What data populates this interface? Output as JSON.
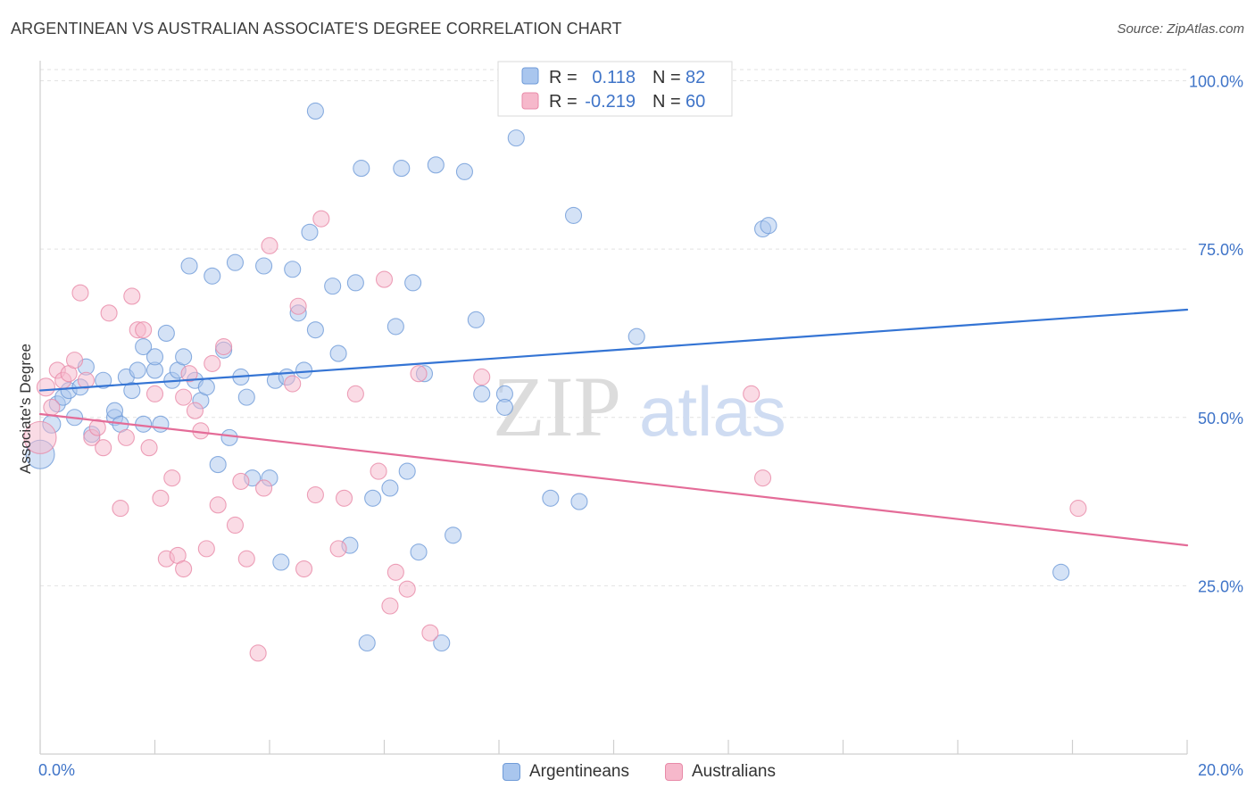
{
  "header": {
    "title": "ARGENTINEAN VS AUSTRALIAN ASSOCIATE'S DEGREE CORRELATION CHART",
    "source": "Source: ZipAtlas.com"
  },
  "watermark": {
    "zip": "ZIP",
    "atlas": "atlas"
  },
  "colors": {
    "blue_fill": "#a9c6ee",
    "blue_stroke": "#6f9bd8",
    "blue_line": "#3474d4",
    "pink_fill": "#f6b8cb",
    "pink_stroke": "#e88aa8",
    "pink_line": "#e46c98",
    "tick_label": "#3f74c8",
    "grid": "#e2e2e2"
  },
  "stats_legend": {
    "rows": [
      {
        "r_label": "R =",
        "r_value": "0.118",
        "n_label": "N =",
        "n_value": "82"
      },
      {
        "r_label": "R =",
        "r_value": "-0.219",
        "n_label": "N =",
        "n_value": "60"
      }
    ]
  },
  "bottom_legend": {
    "items": [
      {
        "label": "Argentineans"
      },
      {
        "label": "Australians"
      }
    ]
  },
  "chart_data": {
    "type": "scatter",
    "title": "ARGENTINEAN VS AUSTRALIAN ASSOCIATE'S DEGREE CORRELATION CHART",
    "xlabel": "",
    "ylabel": "Associate's Degree",
    "xlim": [
      0,
      20
    ],
    "ylim": [
      0,
      100
    ],
    "x_tick_labels": [
      {
        "value": 0,
        "label": "0.0%"
      },
      {
        "value": 20,
        "label": "20.0%"
      }
    ],
    "y_tick_labels": [
      {
        "value": 25,
        "label": "25.0%"
      },
      {
        "value": 50,
        "label": "50.0%"
      },
      {
        "value": 75,
        "label": "75.0%"
      },
      {
        "value": 100,
        "label": "100.0%"
      }
    ],
    "grid": true,
    "legend_position": "top-center",
    "series": [
      {
        "name": "Argentineans",
        "r": 0.118,
        "n": 82,
        "trend": {
          "x": [
            0,
            20
          ],
          "y": [
            54.0,
            66.0
          ]
        },
        "points": [
          [
            0.0,
            44.5,
            16
          ],
          [
            0.2,
            49.0,
            10
          ],
          [
            0.3,
            52.0,
            9
          ],
          [
            0.4,
            53.0,
            9
          ],
          [
            0.5,
            54.0,
            9
          ],
          [
            0.6,
            50.0,
            9
          ],
          [
            0.7,
            54.5,
            9
          ],
          [
            0.8,
            57.5,
            9
          ],
          [
            0.9,
            47.5,
            9
          ],
          [
            1.1,
            55.5,
            9
          ],
          [
            1.3,
            50.0,
            9
          ],
          [
            1.3,
            51.0,
            9
          ],
          [
            1.4,
            49.0,
            9
          ],
          [
            1.5,
            56.0,
            9
          ],
          [
            1.6,
            54.0,
            9
          ],
          [
            1.7,
            57.0,
            9
          ],
          [
            1.8,
            49.0,
            9
          ],
          [
            1.8,
            60.5,
            9
          ],
          [
            2.0,
            57.0,
            9
          ],
          [
            2.0,
            59.0,
            9
          ],
          [
            2.1,
            49.0,
            9
          ],
          [
            2.2,
            62.5,
            9
          ],
          [
            2.3,
            55.5,
            9
          ],
          [
            2.4,
            57.0,
            9
          ],
          [
            2.5,
            59.0,
            9
          ],
          [
            2.6,
            72.5,
            9
          ],
          [
            2.7,
            55.5,
            9
          ],
          [
            2.8,
            52.5,
            9
          ],
          [
            2.9,
            54.5,
            9
          ],
          [
            3.0,
            71.0,
            9
          ],
          [
            3.1,
            43.0,
            9
          ],
          [
            3.2,
            60.0,
            9
          ],
          [
            3.3,
            47.0,
            9
          ],
          [
            3.4,
            73.0,
            9
          ],
          [
            3.5,
            56.0,
            9
          ],
          [
            3.6,
            53.0,
            9
          ],
          [
            3.7,
            41.0,
            9
          ],
          [
            3.9,
            72.5,
            9
          ],
          [
            4.0,
            41.0,
            9
          ],
          [
            4.1,
            55.5,
            9
          ],
          [
            4.2,
            28.5,
            9
          ],
          [
            4.3,
            56.0,
            9
          ],
          [
            4.4,
            72.0,
            9
          ],
          [
            4.5,
            65.5,
            9
          ],
          [
            4.6,
            57.0,
            9
          ],
          [
            4.7,
            77.5,
            9
          ],
          [
            4.8,
            63.0,
            9
          ],
          [
            4.8,
            95.5,
            9
          ],
          [
            5.1,
            69.5,
            9
          ],
          [
            5.2,
            59.5,
            9
          ],
          [
            5.4,
            31.0,
            9
          ],
          [
            5.5,
            70.0,
            9
          ],
          [
            5.6,
            87.0,
            9
          ],
          [
            5.7,
            16.5,
            9
          ],
          [
            5.8,
            38.0,
            9
          ],
          [
            6.1,
            39.5,
            9
          ],
          [
            6.2,
            63.5,
            9
          ],
          [
            6.3,
            87.0,
            9
          ],
          [
            6.4,
            42.0,
            9
          ],
          [
            6.5,
            70.0,
            9
          ],
          [
            6.6,
            30.0,
            9
          ],
          [
            6.7,
            56.5,
            9
          ],
          [
            6.9,
            87.5,
            9
          ],
          [
            7.0,
            16.5,
            9
          ],
          [
            7.2,
            32.5,
            9
          ],
          [
            7.4,
            86.5,
            9
          ],
          [
            7.6,
            64.5,
            9
          ],
          [
            7.7,
            53.5,
            9
          ],
          [
            8.1,
            53.5,
            9
          ],
          [
            8.1,
            51.5,
            9
          ],
          [
            8.3,
            91.5,
            9
          ],
          [
            8.9,
            38.0,
            9
          ],
          [
            9.1,
            100.0,
            9
          ],
          [
            9.3,
            80.0,
            9
          ],
          [
            9.4,
            37.5,
            9
          ],
          [
            10.4,
            62.0,
            9
          ],
          [
            12.6,
            78.0,
            9
          ],
          [
            12.7,
            78.5,
            9
          ],
          [
            17.8,
            27.0,
            9
          ]
        ]
      },
      {
        "name": "Australians",
        "r": -0.219,
        "n": 60,
        "trend": {
          "x": [
            0,
            20
          ],
          "y": [
            50.5,
            31.0
          ]
        },
        "points": [
          [
            0.0,
            47.0,
            18
          ],
          [
            0.1,
            54.5,
            10
          ],
          [
            0.2,
            51.5,
            9
          ],
          [
            0.3,
            57.0,
            9
          ],
          [
            0.4,
            55.5,
            9
          ],
          [
            0.5,
            56.5,
            9
          ],
          [
            0.6,
            58.5,
            9
          ],
          [
            0.7,
            68.5,
            9
          ],
          [
            0.8,
            55.5,
            9
          ],
          [
            0.9,
            47.0,
            9
          ],
          [
            1.0,
            48.5,
            9
          ],
          [
            1.1,
            45.5,
            9
          ],
          [
            1.2,
            65.5,
            9
          ],
          [
            1.4,
            36.5,
            9
          ],
          [
            1.5,
            47.0,
            9
          ],
          [
            1.6,
            68.0,
            9
          ],
          [
            1.7,
            63.0,
            9
          ],
          [
            1.8,
            63.0,
            9
          ],
          [
            1.9,
            45.5,
            9
          ],
          [
            2.0,
            53.5,
            9
          ],
          [
            2.1,
            38.0,
            9
          ],
          [
            2.2,
            29.0,
            9
          ],
          [
            2.3,
            41.0,
            9
          ],
          [
            2.4,
            29.5,
            9
          ],
          [
            2.5,
            53.0,
            9
          ],
          [
            2.5,
            27.5,
            9
          ],
          [
            2.6,
            56.5,
            9
          ],
          [
            2.7,
            51.0,
            9
          ],
          [
            2.8,
            48.0,
            9
          ],
          [
            2.9,
            30.5,
            9
          ],
          [
            3.0,
            58.0,
            9
          ],
          [
            3.1,
            37.0,
            9
          ],
          [
            3.2,
            60.5,
            9
          ],
          [
            3.4,
            34.0,
            9
          ],
          [
            3.5,
            40.5,
            9
          ],
          [
            3.6,
            29.0,
            9
          ],
          [
            3.8,
            15.0,
            9
          ],
          [
            3.9,
            39.5,
            9
          ],
          [
            4.0,
            75.5,
            9
          ],
          [
            4.4,
            55.0,
            9
          ],
          [
            4.5,
            66.5,
            9
          ],
          [
            4.6,
            27.5,
            9
          ],
          [
            4.8,
            38.5,
            9
          ],
          [
            4.9,
            79.5,
            9
          ],
          [
            5.2,
            30.5,
            9
          ],
          [
            5.3,
            38.0,
            9
          ],
          [
            5.5,
            53.5,
            9
          ],
          [
            5.9,
            42.0,
            9
          ],
          [
            6.0,
            70.5,
            9
          ],
          [
            6.1,
            22.0,
            9
          ],
          [
            6.2,
            27.0,
            9
          ],
          [
            6.4,
            24.5,
            9
          ],
          [
            6.6,
            56.5,
            9
          ],
          [
            6.8,
            18.0,
            9
          ],
          [
            7.7,
            56.0,
            9
          ],
          [
            12.4,
            53.5,
            9
          ],
          [
            12.6,
            41.0,
            9
          ],
          [
            18.1,
            36.5,
            9
          ],
          [
            7.8,
            57.0,
            0
          ],
          [
            9.2,
            66.0,
            0
          ]
        ]
      }
    ]
  }
}
